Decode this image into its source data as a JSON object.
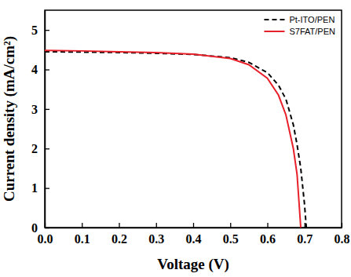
{
  "chart_data": {
    "type": "line",
    "x_label": "Voltage (V)",
    "y_label": "Current density (mA/cm²)",
    "x": [
      0,
      0.1,
      0.2,
      0.3,
      0.4,
      0.5,
      0.55,
      0.6,
      0.63,
      0.65,
      0.67,
      0.68,
      0.69,
      0.7,
      0.705
    ],
    "series": [
      {
        "name": "Pt-ITO/PEN",
        "color": "#000000",
        "line_style": "dashed",
        "values": [
          4.45,
          4.44,
          4.43,
          4.41,
          4.38,
          4.3,
          4.18,
          3.92,
          3.6,
          3.25,
          2.6,
          2.1,
          1.5,
          0.6,
          0
        ]
      },
      {
        "name": "S7FAT/PEN",
        "color": "#e8202a",
        "line_style": "solid",
        "values": [
          4.48,
          4.47,
          4.45,
          4.43,
          4.39,
          4.28,
          4.12,
          3.78,
          3.35,
          2.85,
          2.0,
          1.35,
          0,
          null,
          null
        ]
      }
    ],
    "xlim": [
      0,
      0.8
    ],
    "xticks": [
      {
        "value": 0,
        "label": "0.0"
      },
      0.1,
      0.2,
      0.3,
      0.4,
      0.5,
      0.6,
      0.7,
      0.8
    ],
    "ylim": [
      0,
      5.5
    ],
    "yticks": [
      0,
      1,
      2,
      3,
      4,
      5
    ],
    "legend": "upper right",
    "grid": false
  }
}
